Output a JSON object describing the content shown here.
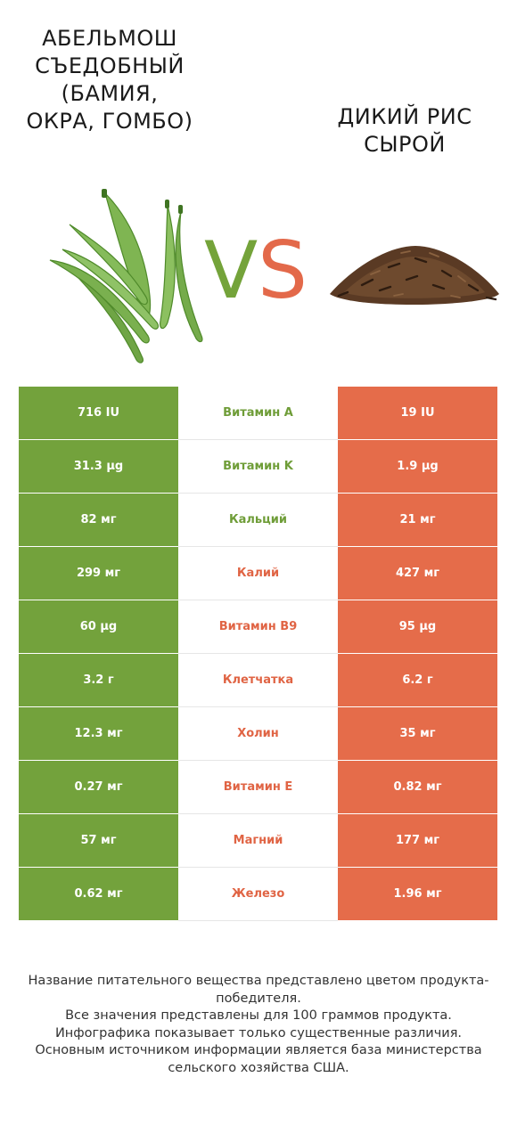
{
  "left_product": {
    "title": "Абельмош съедобный (бамия, окра, гомбо)",
    "image": "okra-pods-icon",
    "color": "#73a23c"
  },
  "right_product": {
    "title": "Дикий рис сырой",
    "image": "wild-rice-pile-icon",
    "color": "#e56c4a"
  },
  "vs": {
    "v": "V",
    "s": "S"
  },
  "rows": [
    {
      "left": "716 IU",
      "nutrient": "Витамин A",
      "right": "19 IU",
      "winner": "left"
    },
    {
      "left": "31.3 µg",
      "nutrient": "Витамин K",
      "right": "1.9 µg",
      "winner": "left"
    },
    {
      "left": "82 мг",
      "nutrient": "Кальций",
      "right": "21 мг",
      "winner": "left"
    },
    {
      "left": "299 мг",
      "nutrient": "Калий",
      "right": "427 мг",
      "winner": "right"
    },
    {
      "left": "60 µg",
      "nutrient": "Витамин B9",
      "right": "95 µg",
      "winner": "right"
    },
    {
      "left": "3.2 г",
      "nutrient": "Клетчатка",
      "right": "6.2 г",
      "winner": "right"
    },
    {
      "left": "12.3 мг",
      "nutrient": "Холин",
      "right": "35 мг",
      "winner": "right"
    },
    {
      "left": "0.27 мг",
      "nutrient": "Витамин E",
      "right": "0.82 мг",
      "winner": "right"
    },
    {
      "left": "57 мг",
      "nutrient": "Магний",
      "right": "177 мг",
      "winner": "right"
    },
    {
      "left": "0.62 мг",
      "nutrient": "Железо",
      "right": "1.96 мг",
      "winner": "right"
    }
  ],
  "footer": [
    "Название питательного вещества представлено цветом продукта-победителя.",
    "Все значения представлены для 100 граммов продукта.",
    "Инфографика показывает только существенные различия.",
    "Основным источником информации является база министерства сельского хозяйства США."
  ]
}
